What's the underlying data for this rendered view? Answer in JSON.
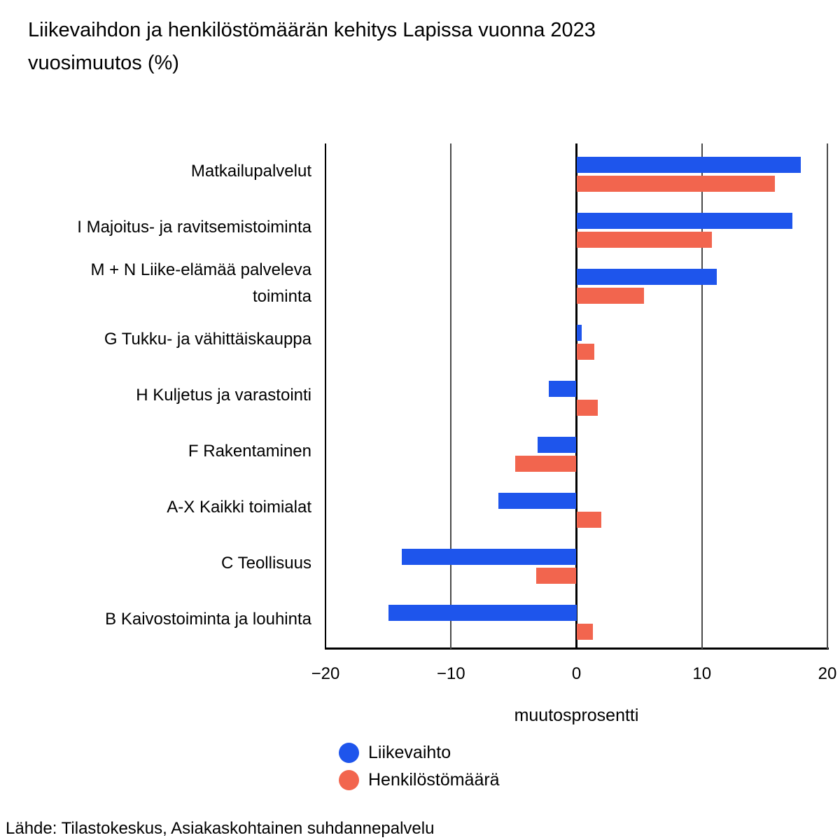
{
  "title": {
    "line1": "Liikevaihdon ja henkilöstömäärän kehitys Lapissa vuonna 2023",
    "line2": "vuosimuutos (%)"
  },
  "source_note": "Lähde: Tilastokeskus, Asiakaskohtainen suhdannepalvelu",
  "colors": {
    "liikevaihto_blue": "#1E55EC",
    "henkilostomaara_red": "#F2654E",
    "gridline_gray": "#4a4a4a",
    "axis_black": "#000000",
    "background": "#ffffff"
  },
  "legend": {
    "items": [
      {
        "label": "Liikevaihto",
        "color": "#1E55EC",
        "marker": "circle-icon"
      },
      {
        "label": "Henkilöstömäärä",
        "color": "#F2654E",
        "marker": "circle-icon"
      }
    ]
  },
  "chart_data": {
    "type": "bar",
    "orientation": "horizontal",
    "title": "Liikevaihdon ja henkilöstömäärän kehitys Lapissa vuonna 2023 vuosimuutos (%)",
    "xlabel": "muutosprosentti",
    "ylabel": "",
    "xlim": [
      -20,
      20
    ],
    "xticks": [
      -20,
      -10,
      0,
      10,
      20
    ],
    "xtick_labels": [
      "−20",
      "−10",
      "0",
      "10",
      "20"
    ],
    "grid": "vertical gridlines at -10, 10, 20 (gray); zero line and left spine black",
    "legend_position": "bottom-left",
    "categories": [
      "Matkailupalvelut",
      "I Majoitus- ja ravitsemistoiminta",
      "M + N Liike-elämää palveleva\ntoiminta",
      "G Tukku- ja vähittäiskauppa",
      "H Kuljetus ja varastointi",
      "F Rakentaminen",
      "A-X Kaikki toimialat",
      "C Teollisuus",
      "B Kaivostoiminta ja louhinta"
    ],
    "series": [
      {
        "name": "Liikevaihto",
        "color": "#1E55EC",
        "values": [
          17.9,
          17.2,
          11.2,
          0.4,
          -2.2,
          -3.1,
          -6.2,
          -13.9,
          -15.0
        ]
      },
      {
        "name": "Henkilöstömäärä",
        "color": "#F2654E",
        "values": [
          15.8,
          10.8,
          5.4,
          1.4,
          1.7,
          -4.9,
          2.0,
          -3.2,
          1.3
        ]
      }
    ]
  }
}
